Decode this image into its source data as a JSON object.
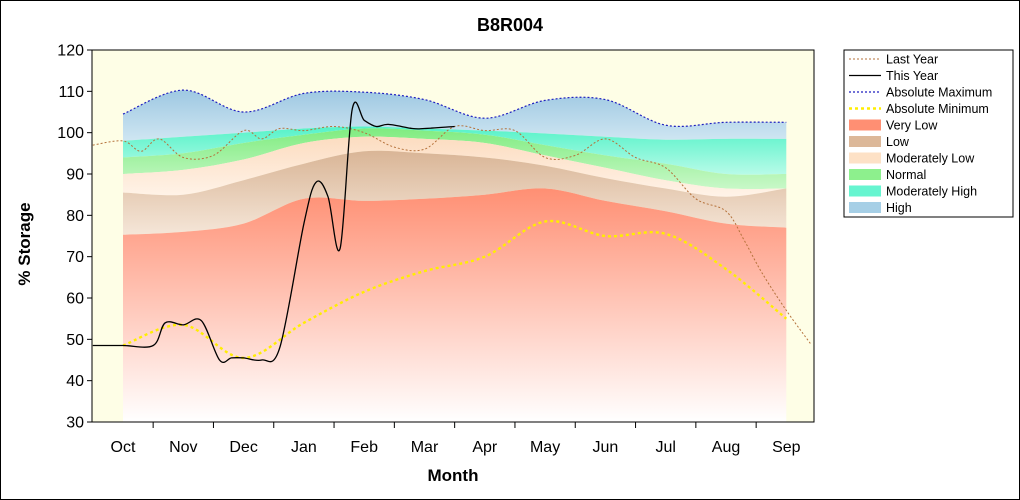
{
  "chart_data": {
    "type": "area",
    "title": "B8R004",
    "xlabel": "Month",
    "ylabel": "% Storage",
    "ylim": [
      30,
      120
    ],
    "yticks": [
      30,
      40,
      50,
      60,
      70,
      80,
      90,
      100,
      110,
      120
    ],
    "categories": [
      "Oct",
      "Nov",
      "Dec",
      "Jan",
      "Feb",
      "Mar",
      "Apr",
      "May",
      "Jun",
      "Jul",
      "Aug",
      "Sep"
    ],
    "grid": false,
    "legend_position": "right",
    "bands_x": [
      0,
      1,
      2,
      3,
      4,
      5,
      6,
      7,
      8,
      9,
      10,
      11
    ],
    "boundaries": {
      "absolute_maximum": [
        104.5,
        110.3,
        105,
        109.5,
        109.8,
        108,
        103.5,
        107.8,
        108,
        101.8,
        102.5,
        102.5
      ],
      "high_lower": [
        98,
        99,
        100,
        101,
        101.5,
        101,
        100.5,
        99.8,
        99,
        98.3,
        98.5,
        98.5
      ],
      "normal_upper": [
        94,
        95,
        97.5,
        99.5,
        101,
        100.5,
        99.5,
        97,
        94.5,
        92.5,
        90,
        90
      ],
      "normal_lower": [
        90,
        91,
        93.5,
        97.5,
        99,
        98.5,
        97.5,
        94.5,
        91.5,
        88.5,
        86.5,
        86.5
      ],
      "moderately_low_lower": [
        85.5,
        85,
        88.5,
        92.5,
        95.5,
        95,
        94,
        92,
        89,
        86.5,
        84.5,
        86.5
      ],
      "low_lower": [
        75.3,
        76,
        78,
        84,
        83.5,
        84,
        85,
        86.5,
        83.5,
        81,
        78,
        77
      ],
      "absolute_minimum": [
        48.5,
        53.5,
        45.5,
        54,
        61.5,
        66.5,
        70,
        78.5,
        75,
        75.5,
        67,
        55
      ]
    },
    "series": [
      {
        "name": "Last Year",
        "x": [
          -0.5,
          0,
          0.3,
          0.6,
          1,
          1.5,
          2,
          2.3,
          2.6,
          3,
          3.5,
          4,
          4.5,
          5,
          5.5,
          6,
          6.5,
          7,
          7.5,
          8,
          8.5,
          9,
          9.5,
          10,
          10.3,
          10.6,
          11,
          11.4
        ],
        "y": [
          97,
          98,
          95.5,
          98.5,
          94,
          94.5,
          100.5,
          98.5,
          101,
          100.5,
          101.5,
          100,
          96.5,
          96,
          101.5,
          100.5,
          100.5,
          94,
          94.5,
          98.5,
          94,
          91.5,
          84,
          81,
          74,
          66,
          57,
          49
        ]
      },
      {
        "name": "This Year",
        "x": [
          -0.5,
          0,
          0.5,
          0.7,
          1,
          1.3,
          1.6,
          1.8,
          2,
          2.3,
          2.6,
          3,
          3.2,
          3.4,
          3.6,
          3.8,
          4,
          4.2,
          4.4,
          4.8,
          5,
          5.5
        ],
        "y": [
          48.5,
          48.5,
          48.5,
          54,
          53.5,
          54.5,
          45,
          45.5,
          45.5,
          45,
          48,
          78,
          88,
          84.5,
          72,
          105.5,
          103,
          101.5,
          102,
          101,
          101,
          101.5
        ]
      },
      {
        "name": "Absolute Maximum",
        "x": [
          0,
          1,
          2,
          3,
          4,
          5,
          6,
          7,
          8,
          9,
          10,
          11
        ],
        "y": [
          104.5,
          110.3,
          105,
          109.5,
          109.8,
          108,
          103.5,
          107.8,
          108,
          101.8,
          102.5,
          102.5
        ]
      },
      {
        "name": "Absolute Minimum",
        "x": [
          0,
          1,
          2,
          3,
          4,
          5,
          6,
          7,
          8,
          9,
          10,
          11
        ],
        "y": [
          48.5,
          53.5,
          45.5,
          54,
          61.5,
          66.5,
          70,
          78.5,
          75,
          75.5,
          67,
          55
        ]
      },
      {
        "name": "Very Low"
      },
      {
        "name": "Low"
      },
      {
        "name": "Moderately Low"
      },
      {
        "name": "Normal"
      },
      {
        "name": "Moderately High"
      },
      {
        "name": "High"
      }
    ],
    "colors": {
      "outer_background": "#fefee6",
      "last_year": "#b5723b",
      "this_year": "#000000",
      "absolute_maximum": "#1f1fbf",
      "absolute_minimum": "#ffee00",
      "very_low": "#ff8f73",
      "low": "#dcb899",
      "moderately_low": "#fde1c6",
      "normal": "#8df08d",
      "moderately_high": "#66f5d0",
      "high": "#a6cfe6"
    }
  }
}
